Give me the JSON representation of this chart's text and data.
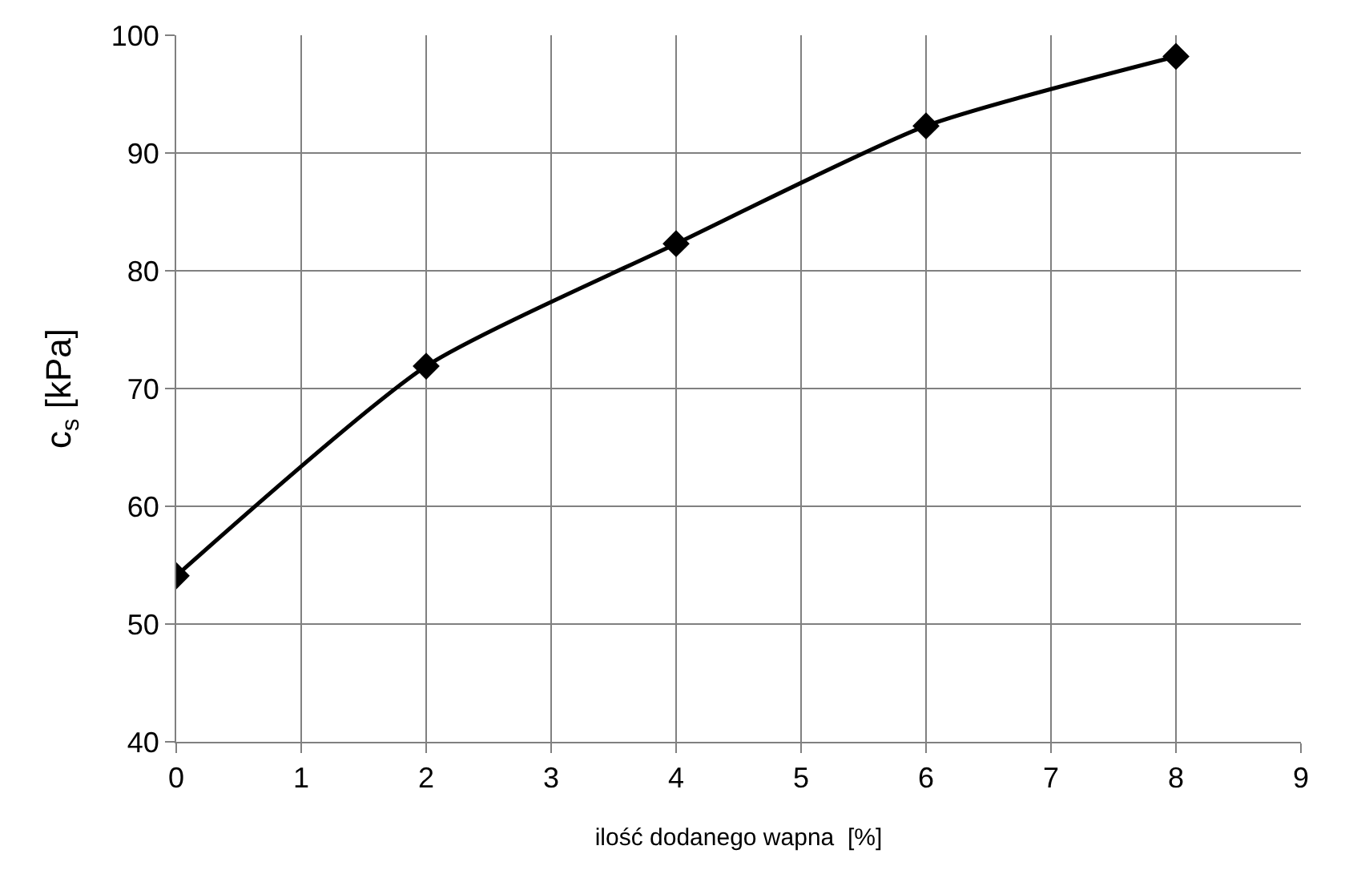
{
  "chart_data": {
    "type": "line",
    "xlabel": "ilość dodanego wapna  [%]",
    "ylabel": "c$_{s}$ [kPa]",
    "x": [
      0,
      2,
      4,
      6,
      8
    ],
    "series": [
      {
        "color": "#000000",
        "values": [
          54.1,
          71.9,
          82.3,
          92.3,
          98.2
        ]
      }
    ],
    "xlim": [
      0,
      9
    ],
    "xticks": [
      0,
      1,
      2,
      3,
      4,
      5,
      6,
      7,
      8,
      9
    ],
    "ylim": [
      40,
      100
    ],
    "yticks": [
      40,
      50,
      60,
      70,
      80,
      90,
      100
    ],
    "grid": true,
    "marker": "diamond",
    "line_style": "solid"
  }
}
